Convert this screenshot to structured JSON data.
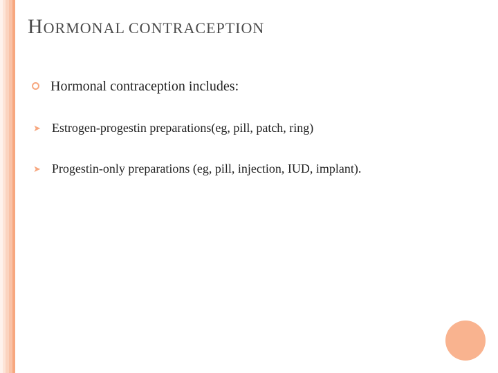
{
  "slide": {
    "background_color": "#ffffff",
    "stripes": [
      {
        "color": "#fef2ec",
        "width": 4
      },
      {
        "color": "#fde4d7",
        "width": 4
      },
      {
        "color": "#fbd3bf",
        "width": 5
      },
      {
        "color": "#f9c2a7",
        "width": 5
      },
      {
        "color": "#f7a77f",
        "width": 4
      }
    ],
    "title": {
      "cap1": "H",
      "word1_rest": "ORMONAL",
      "word2": "CONTRACEPTION",
      "color": "#4a4a4a",
      "cap_fontsize": 30,
      "rest_fontsize": 22
    },
    "bullets": [
      {
        "type": "circle",
        "text": "Hormonal contraception includes:",
        "fontsize": 20
      },
      {
        "type": "arrow",
        "text": "Estrogen-progestin preparations(eg, pill, patch, ring)",
        "fontsize": 18
      },
      {
        "type": "arrow",
        "text": "Progestin-only preparations (eg, pill, injection, IUD, implant).",
        "fontsize": 18
      }
    ],
    "bullet_color": "#f7a77f",
    "corner_circle": {
      "color": "#f9b38f",
      "size": 58
    }
  }
}
